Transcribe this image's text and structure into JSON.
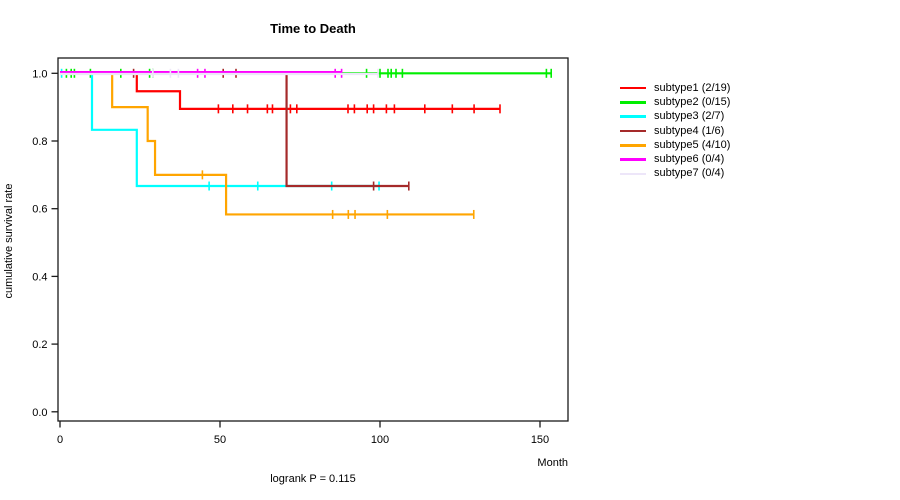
{
  "chart_data": {
    "type": "line",
    "variant": "kaplan-meier-step-curves",
    "title": "Time to Death",
    "xlabel": "Month",
    "ylabel": "cumulative survival rate",
    "footer": "logrank P = 0.115",
    "x_ticks": [
      0,
      50,
      100,
      150
    ],
    "x_tick_labels": [
      "0",
      "50",
      "100",
      "150"
    ],
    "y_ticks": [
      0.0,
      0.2,
      0.4,
      0.6,
      0.8,
      1.0
    ],
    "y_tick_labels": [
      "0.0",
      "0.2",
      "0.4",
      "0.6",
      "0.8",
      "1.0"
    ],
    "xlim": [
      0,
      159
    ],
    "ylim": [
      0.0,
      1.04
    ],
    "grid": false,
    "legend_position": "right",
    "series": [
      {
        "name": "subtype1 (2/19)",
        "color": "#FF0000",
        "steps": [
          [
            0,
            1
          ],
          [
            24,
            1
          ],
          [
            24,
            0.947
          ],
          [
            37.5,
            0.947
          ],
          [
            37.5,
            0.895
          ],
          [
            137.5,
            0.895
          ]
        ],
        "censors": [
          [
            49.5,
            0.895
          ],
          [
            54,
            0.895
          ],
          [
            58.6,
            0.895
          ],
          [
            64.8,
            0.895
          ],
          [
            66.4,
            0.895
          ],
          [
            72,
            0.895
          ],
          [
            74,
            0.895
          ],
          [
            90,
            0.895
          ],
          [
            92,
            0.895
          ],
          [
            96,
            0.895
          ],
          [
            98,
            0.895
          ],
          [
            102,
            0.895
          ],
          [
            104.5,
            0.895
          ],
          [
            114,
            0.895
          ],
          [
            122.6,
            0.895
          ],
          [
            129.4,
            0.895
          ],
          [
            137.5,
            0.895
          ]
        ]
      },
      {
        "name": "subtype2 (0/15)",
        "color": "#00EE00",
        "steps": [
          [
            0,
            1
          ],
          [
            153.5,
            1
          ]
        ],
        "censors": [
          [
            2,
            1
          ],
          [
            3.5,
            1
          ],
          [
            4.5,
            1
          ],
          [
            9.5,
            1
          ],
          [
            19,
            1
          ],
          [
            28,
            1
          ],
          [
            29,
            1
          ],
          [
            95.8,
            1
          ],
          [
            100,
            1
          ],
          [
            102.5,
            1
          ],
          [
            103.5,
            1
          ],
          [
            105,
            1
          ],
          [
            107,
            1
          ],
          [
            152,
            1
          ],
          [
            153.5,
            1
          ]
        ]
      },
      {
        "name": "subtype3 (2/7)",
        "color": "#00FFFF",
        "steps": [
          [
            0,
            1
          ],
          [
            10,
            1
          ],
          [
            10,
            0.833
          ],
          [
            24,
            0.833
          ],
          [
            24,
            0.667
          ],
          [
            100,
            0.667
          ]
        ],
        "censors": [
          [
            0.5,
            1
          ],
          [
            46.6,
            0.667
          ],
          [
            61.8,
            0.667
          ],
          [
            84.9,
            0.667
          ],
          [
            99.7,
            0.667
          ]
        ]
      },
      {
        "name": "subtype4 (1/6)",
        "color": "#A52A2A",
        "steps": [
          [
            0,
            1
          ],
          [
            70.8,
            1
          ],
          [
            70.8,
            0.667
          ],
          [
            109,
            0.667
          ]
        ],
        "censors": [
          [
            23,
            1
          ],
          [
            51,
            1
          ],
          [
            55,
            1
          ],
          [
            98,
            0.667
          ],
          [
            109,
            0.667
          ]
        ]
      },
      {
        "name": "subtype5 (4/10)",
        "color": "#FFA500",
        "steps": [
          [
            0,
            1
          ],
          [
            16.3,
            1
          ],
          [
            16.3,
            0.9
          ],
          [
            27.4,
            0.9
          ],
          [
            27.4,
            0.8
          ],
          [
            29.7,
            0.8
          ],
          [
            29.7,
            0.7
          ],
          [
            51.9,
            0.7
          ],
          [
            51.9,
            0.583
          ],
          [
            129.3,
            0.583
          ]
        ],
        "censors": [
          [
            44.5,
            0.7
          ],
          [
            85.2,
            0.583
          ],
          [
            90.1,
            0.583
          ],
          [
            92.2,
            0.583
          ],
          [
            102.3,
            0.583
          ],
          [
            129.3,
            0.583
          ]
        ]
      },
      {
        "name": "subtype6 (0/4)",
        "color": "#FF00FF",
        "steps": [
          [
            0,
            1
          ],
          [
            88,
            1
          ]
        ],
        "censors": [
          [
            43,
            1
          ],
          [
            45.3,
            1
          ],
          [
            86,
            1
          ],
          [
            88,
            1
          ]
        ]
      },
      {
        "name": "subtype7 (0/4)",
        "color": "#EDE6F9",
        "steps": [
          [
            0,
            1
          ],
          [
            99.4,
            1
          ]
        ],
        "censors": [
          [
            29,
            1
          ],
          [
            34.5,
            1
          ],
          [
            37,
            1
          ],
          [
            99.4,
            1
          ]
        ]
      }
    ]
  }
}
